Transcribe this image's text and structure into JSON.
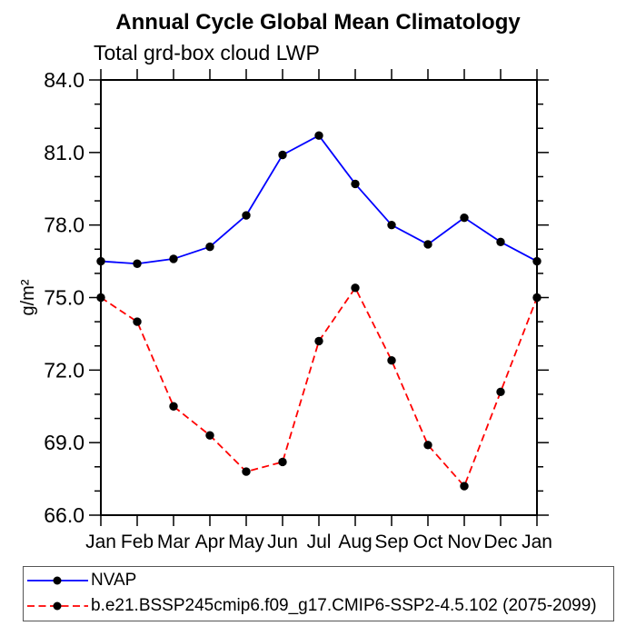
{
  "chart_data": {
    "type": "line",
    "title": "Annual Cycle Global Mean Climatology",
    "subtitle": "Total grd-box cloud LWP",
    "ylabel": "g/m²",
    "xlabel": "",
    "categories": [
      "Jan",
      "Feb",
      "Mar",
      "Apr",
      "May",
      "Jun",
      "Jul",
      "Aug",
      "Sep",
      "Oct",
      "Nov",
      "Dec",
      "Jan"
    ],
    "ylim": [
      66,
      84
    ],
    "yticks": [
      66,
      69,
      72,
      75,
      78,
      81,
      84
    ],
    "ytick_labels": [
      "66.0",
      "69.0",
      "72.0",
      "75.0",
      "78.0",
      "81.0",
      "84.0"
    ],
    "y_minor_step": 1,
    "grid": "off",
    "frame": "boxed-outward-ticks",
    "marker": "filled-circle",
    "marker_color": "#000000",
    "axis_color": "#000000",
    "series": [
      {
        "id": "nvap",
        "name": "NVAP",
        "color": "#0000ff",
        "line_style": "solid",
        "values": [
          76.5,
          76.4,
          76.6,
          77.1,
          78.4,
          80.9,
          81.7,
          79.7,
          78.0,
          77.2,
          78.3,
          77.3,
          76.5
        ]
      },
      {
        "id": "model",
        "name": "b.e21.BSSP245cmip6.f09_g17.CMIP6-SSP2-4.5.102 (2075-2099)",
        "color": "#ff0000",
        "line_style": "dashed",
        "values": [
          75.0,
          74.0,
          70.5,
          69.3,
          67.8,
          68.2,
          73.2,
          75.4,
          72.4,
          68.9,
          67.2,
          71.1,
          75.0
        ]
      }
    ],
    "legend_position": "bottom"
  }
}
